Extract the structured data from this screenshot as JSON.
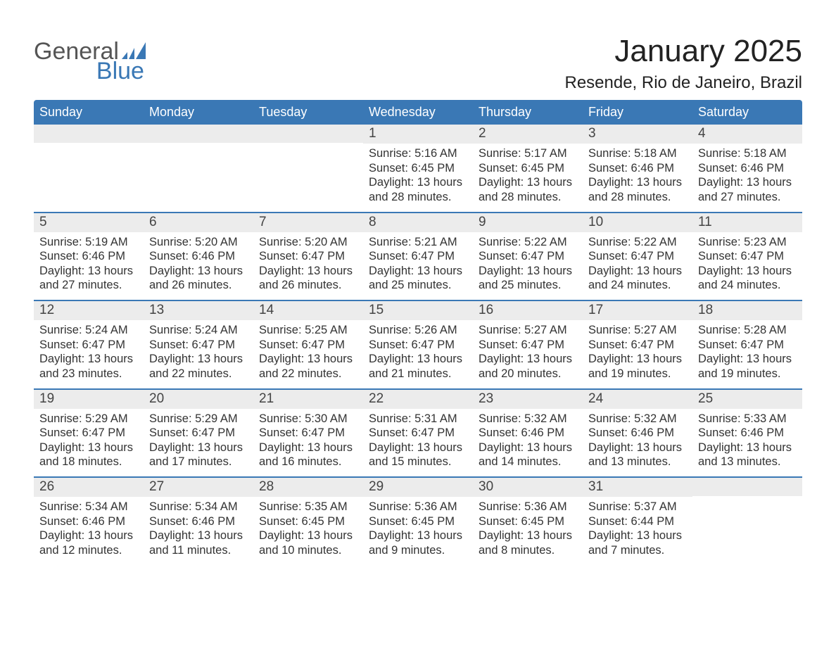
{
  "logo": {
    "top": "General",
    "bottom": "Blue"
  },
  "title": "January 2025",
  "location": "Resende, Rio de Janeiro, Brazil",
  "colors": {
    "header_bg": "#3a78b5",
    "daynum_bg": "#ececec",
    "week_border": "#3a78b5",
    "text": "#333333",
    "logo_gray": "#555555",
    "logo_blue": "#3a78b5"
  },
  "dow": [
    "Sunday",
    "Monday",
    "Tuesday",
    "Wednesday",
    "Thursday",
    "Friday",
    "Saturday"
  ],
  "weeks": [
    [
      {
        "day": "",
        "lines": []
      },
      {
        "day": "",
        "lines": []
      },
      {
        "day": "",
        "lines": []
      },
      {
        "day": "1",
        "lines": [
          "Sunrise: 5:16 AM",
          "Sunset: 6:45 PM",
          "Daylight: 13 hours",
          "and 28 minutes."
        ]
      },
      {
        "day": "2",
        "lines": [
          "Sunrise: 5:17 AM",
          "Sunset: 6:45 PM",
          "Daylight: 13 hours",
          "and 28 minutes."
        ]
      },
      {
        "day": "3",
        "lines": [
          "Sunrise: 5:18 AM",
          "Sunset: 6:46 PM",
          "Daylight: 13 hours",
          "and 28 minutes."
        ]
      },
      {
        "day": "4",
        "lines": [
          "Sunrise: 5:18 AM",
          "Sunset: 6:46 PM",
          "Daylight: 13 hours",
          "and 27 minutes."
        ]
      }
    ],
    [
      {
        "day": "5",
        "lines": [
          "Sunrise: 5:19 AM",
          "Sunset: 6:46 PM",
          "Daylight: 13 hours",
          "and 27 minutes."
        ]
      },
      {
        "day": "6",
        "lines": [
          "Sunrise: 5:20 AM",
          "Sunset: 6:46 PM",
          "Daylight: 13 hours",
          "and 26 minutes."
        ]
      },
      {
        "day": "7",
        "lines": [
          "Sunrise: 5:20 AM",
          "Sunset: 6:47 PM",
          "Daylight: 13 hours",
          "and 26 minutes."
        ]
      },
      {
        "day": "8",
        "lines": [
          "Sunrise: 5:21 AM",
          "Sunset: 6:47 PM",
          "Daylight: 13 hours",
          "and 25 minutes."
        ]
      },
      {
        "day": "9",
        "lines": [
          "Sunrise: 5:22 AM",
          "Sunset: 6:47 PM",
          "Daylight: 13 hours",
          "and 25 minutes."
        ]
      },
      {
        "day": "10",
        "lines": [
          "Sunrise: 5:22 AM",
          "Sunset: 6:47 PM",
          "Daylight: 13 hours",
          "and 24 minutes."
        ]
      },
      {
        "day": "11",
        "lines": [
          "Sunrise: 5:23 AM",
          "Sunset: 6:47 PM",
          "Daylight: 13 hours",
          "and 24 minutes."
        ]
      }
    ],
    [
      {
        "day": "12",
        "lines": [
          "Sunrise: 5:24 AM",
          "Sunset: 6:47 PM",
          "Daylight: 13 hours",
          "and 23 minutes."
        ]
      },
      {
        "day": "13",
        "lines": [
          "Sunrise: 5:24 AM",
          "Sunset: 6:47 PM",
          "Daylight: 13 hours",
          "and 22 minutes."
        ]
      },
      {
        "day": "14",
        "lines": [
          "Sunrise: 5:25 AM",
          "Sunset: 6:47 PM",
          "Daylight: 13 hours",
          "and 22 minutes."
        ]
      },
      {
        "day": "15",
        "lines": [
          "Sunrise: 5:26 AM",
          "Sunset: 6:47 PM",
          "Daylight: 13 hours",
          "and 21 minutes."
        ]
      },
      {
        "day": "16",
        "lines": [
          "Sunrise: 5:27 AM",
          "Sunset: 6:47 PM",
          "Daylight: 13 hours",
          "and 20 minutes."
        ]
      },
      {
        "day": "17",
        "lines": [
          "Sunrise: 5:27 AM",
          "Sunset: 6:47 PM",
          "Daylight: 13 hours",
          "and 19 minutes."
        ]
      },
      {
        "day": "18",
        "lines": [
          "Sunrise: 5:28 AM",
          "Sunset: 6:47 PM",
          "Daylight: 13 hours",
          "and 19 minutes."
        ]
      }
    ],
    [
      {
        "day": "19",
        "lines": [
          "Sunrise: 5:29 AM",
          "Sunset: 6:47 PM",
          "Daylight: 13 hours",
          "and 18 minutes."
        ]
      },
      {
        "day": "20",
        "lines": [
          "Sunrise: 5:29 AM",
          "Sunset: 6:47 PM",
          "Daylight: 13 hours",
          "and 17 minutes."
        ]
      },
      {
        "day": "21",
        "lines": [
          "Sunrise: 5:30 AM",
          "Sunset: 6:47 PM",
          "Daylight: 13 hours",
          "and 16 minutes."
        ]
      },
      {
        "day": "22",
        "lines": [
          "Sunrise: 5:31 AM",
          "Sunset: 6:47 PM",
          "Daylight: 13 hours",
          "and 15 minutes."
        ]
      },
      {
        "day": "23",
        "lines": [
          "Sunrise: 5:32 AM",
          "Sunset: 6:46 PM",
          "Daylight: 13 hours",
          "and 14 minutes."
        ]
      },
      {
        "day": "24",
        "lines": [
          "Sunrise: 5:32 AM",
          "Sunset: 6:46 PM",
          "Daylight: 13 hours",
          "and 13 minutes."
        ]
      },
      {
        "day": "25",
        "lines": [
          "Sunrise: 5:33 AM",
          "Sunset: 6:46 PM",
          "Daylight: 13 hours",
          "and 13 minutes."
        ]
      }
    ],
    [
      {
        "day": "26",
        "lines": [
          "Sunrise: 5:34 AM",
          "Sunset: 6:46 PM",
          "Daylight: 13 hours",
          "and 12 minutes."
        ]
      },
      {
        "day": "27",
        "lines": [
          "Sunrise: 5:34 AM",
          "Sunset: 6:46 PM",
          "Daylight: 13 hours",
          "and 11 minutes."
        ]
      },
      {
        "day": "28",
        "lines": [
          "Sunrise: 5:35 AM",
          "Sunset: 6:45 PM",
          "Daylight: 13 hours",
          "and 10 minutes."
        ]
      },
      {
        "day": "29",
        "lines": [
          "Sunrise: 5:36 AM",
          "Sunset: 6:45 PM",
          "Daylight: 13 hours",
          "and 9 minutes."
        ]
      },
      {
        "day": "30",
        "lines": [
          "Sunrise: 5:36 AM",
          "Sunset: 6:45 PM",
          "Daylight: 13 hours",
          "and 8 minutes."
        ]
      },
      {
        "day": "31",
        "lines": [
          "Sunrise: 5:37 AM",
          "Sunset: 6:44 PM",
          "Daylight: 13 hours",
          "and 7 minutes."
        ]
      },
      {
        "day": "",
        "lines": []
      }
    ]
  ]
}
